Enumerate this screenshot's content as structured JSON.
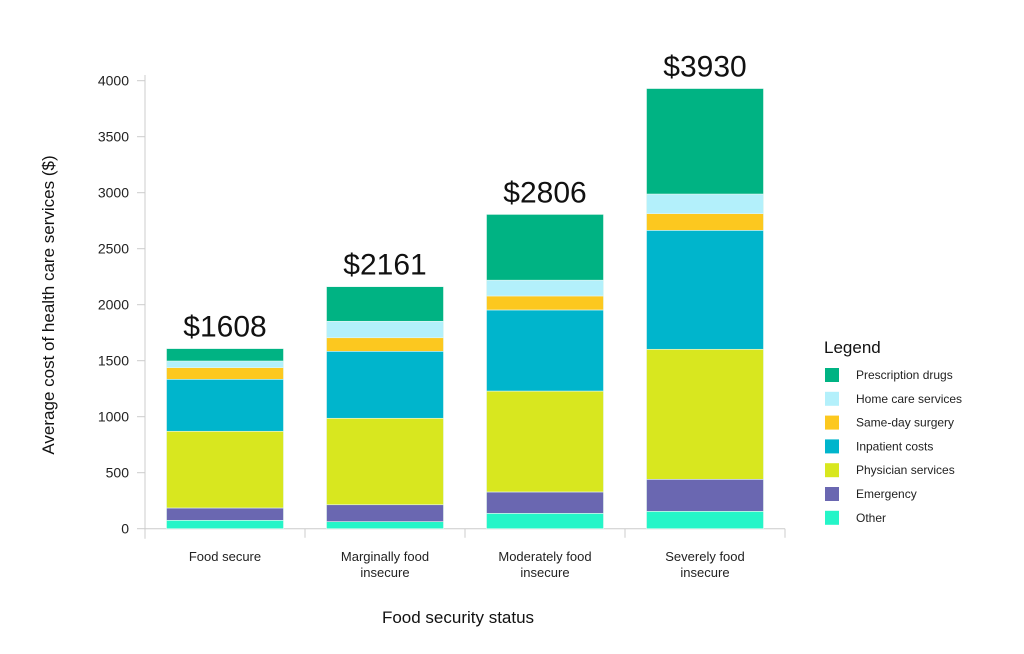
{
  "chart_data": {
    "type": "bar",
    "stacked": true,
    "xlabel": "Food security status",
    "ylabel": "Average cost of health care services ($)",
    "ylim": [
      0,
      4000
    ],
    "yticks": [
      0,
      500,
      1000,
      1500,
      2000,
      2500,
      3000,
      3500,
      4000
    ],
    "grid": false,
    "categories": [
      [
        "Food secure"
      ],
      [
        "Marginally food",
        "insecure"
      ],
      [
        "Moderately food",
        "insecure"
      ],
      [
        "Severely food",
        "insecure"
      ]
    ],
    "totals": [
      "$1608",
      "$2161",
      "$2806",
      "$3930"
    ],
    "legend": {
      "title": "Legend",
      "placement": "right"
    },
    "series": [
      {
        "name": "Other",
        "color": "#25f5c8",
        "values": [
          75,
          63,
          137,
          155
        ]
      },
      {
        "name": "Emergency",
        "color": "#6a67b1",
        "values": [
          110,
          151,
          191,
          286
        ]
      },
      {
        "name": "Physician services",
        "color": "#d8e71f",
        "values": [
          685,
          772,
          901,
          1161
        ]
      },
      {
        "name": "Inpatient costs",
        "color": "#00b5cc",
        "values": [
          464,
          598,
          724,
          1062
        ]
      },
      {
        "name": "Same-day surgery",
        "color": "#fcc81f",
        "values": [
          104,
          121,
          125,
          149
        ]
      },
      {
        "name": "Home care services",
        "color": "#b3f0fb",
        "values": [
          59,
          147,
          141,
          175
        ]
      },
      {
        "name": "Prescription drugs",
        "color": "#00b383",
        "values": [
          111,
          309,
          587,
          942
        ]
      }
    ]
  }
}
